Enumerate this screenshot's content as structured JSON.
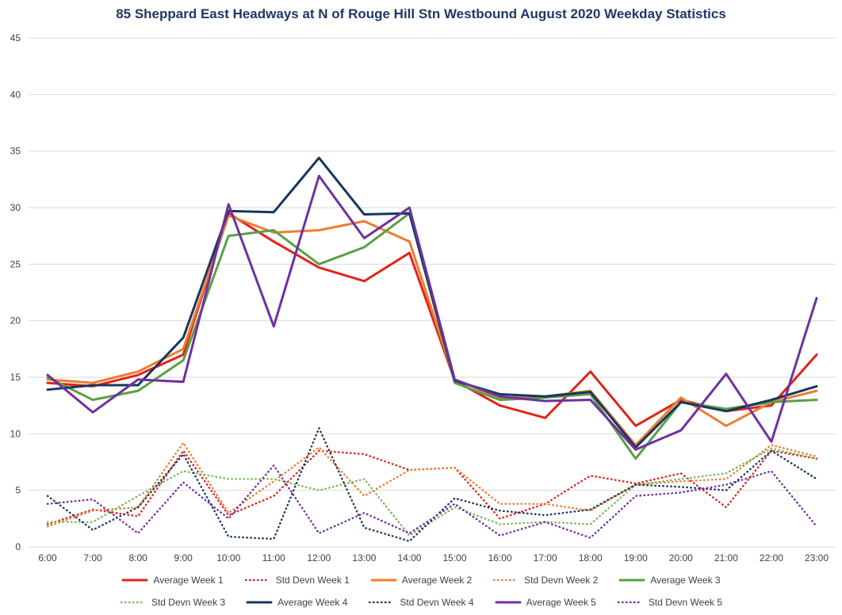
{
  "chart_data": {
    "type": "line",
    "title": "85 Sheppard East Headways at N of Rouge Hill Stn Westbound August 2020 Weekday Statistics",
    "x": [
      "6:00",
      "7:00",
      "8:00",
      "9:00",
      "10:00",
      "11:00",
      "12:00",
      "13:00",
      "14:00",
      "15:00",
      "16:00",
      "17:00",
      "18:00",
      "19:00",
      "20:00",
      "21:00",
      "22:00",
      "23:00"
    ],
    "xlabel": "",
    "ylabel": "",
    "ylim": [
      0,
      45
    ],
    "ytick_step": 5,
    "grid": true,
    "legend_position": "bottom",
    "colors": {
      "gridline": "#D9D9D9",
      "title_text": "#1F3864",
      "axis_text": "#404040",
      "background": "#FFFFFF"
    },
    "series": [
      {
        "name": "Average Week 1",
        "color": "#E2231A",
        "style": "solid",
        "values": [
          14.5,
          14.2,
          15.2,
          17.0,
          29.5,
          27.0,
          24.7,
          23.5,
          26.0,
          14.7,
          12.5,
          11.4,
          15.5,
          10.7,
          13.0,
          12.0,
          12.5,
          17.0
        ]
      },
      {
        "name": "Std Devn Week 1",
        "color": "#E2231A",
        "style": "dotted",
        "values": [
          2.0,
          3.3,
          2.7,
          8.5,
          2.8,
          4.5,
          8.5,
          8.2,
          6.8,
          7.0,
          2.5,
          3.8,
          6.3,
          5.6,
          6.5,
          3.5,
          8.5,
          7.8
        ]
      },
      {
        "name": "Average Week 2",
        "color": "#ED7D31",
        "style": "solid",
        "values": [
          14.8,
          14.5,
          15.5,
          17.5,
          29.3,
          27.8,
          28.0,
          28.8,
          27.0,
          14.8,
          13.2,
          13.3,
          13.8,
          9.0,
          13.2,
          10.7,
          12.8,
          13.8
        ]
      },
      {
        "name": "Std Devn Week 2",
        "color": "#ED7D31",
        "style": "dotted",
        "values": [
          1.8,
          3.2,
          3.5,
          9.2,
          3.0,
          5.8,
          8.8,
          4.5,
          6.8,
          7.0,
          3.8,
          3.8,
          3.2,
          5.5,
          5.8,
          6.0,
          9.0,
          8.0
        ]
      },
      {
        "name": "Average Week 3",
        "color": "#5AA046",
        "style": "solid",
        "values": [
          15.0,
          13.0,
          13.8,
          16.5,
          27.5,
          28.0,
          25.0,
          26.5,
          29.5,
          14.5,
          13.0,
          13.2,
          13.5,
          7.8,
          12.8,
          12.2,
          12.8,
          13.0
        ]
      },
      {
        "name": "Std Devn Week 3",
        "color": "#79B85A",
        "style": "dotted",
        "values": [
          2.2,
          2.2,
          4.5,
          6.7,
          6.0,
          6.0,
          5.0,
          6.0,
          1.0,
          3.5,
          2.0,
          2.2,
          2.0,
          5.5,
          6.0,
          6.5,
          8.7,
          7.8
        ]
      },
      {
        "name": "Average Week 4",
        "color": "#17375E",
        "style": "solid",
        "values": [
          13.9,
          14.3,
          14.3,
          18.5,
          29.7,
          29.6,
          34.4,
          29.4,
          29.5,
          14.7,
          13.5,
          13.3,
          13.7,
          8.8,
          12.8,
          12.0,
          13.0,
          14.2
        ]
      },
      {
        "name": "Std Devn Week 4",
        "color": "#17375E",
        "style": "dotted",
        "values": [
          4.5,
          1.5,
          3.5,
          8.2,
          0.9,
          0.7,
          10.5,
          1.7,
          0.5,
          4.3,
          3.2,
          2.8,
          3.3,
          5.5,
          5.3,
          5.0,
          8.5,
          6.0
        ]
      },
      {
        "name": "Average Week 5",
        "color": "#7030A0",
        "style": "solid",
        "values": [
          15.2,
          11.9,
          14.8,
          14.6,
          30.3,
          19.5,
          32.8,
          27.3,
          30.0,
          14.8,
          13.3,
          12.9,
          13.0,
          8.6,
          10.3,
          15.3,
          9.3,
          22.0
        ]
      },
      {
        "name": "Std Devn Week 5",
        "color": "#7030A0",
        "style": "dotted",
        "values": [
          3.8,
          4.2,
          1.2,
          5.7,
          2.5,
          7.2,
          1.2,
          3.0,
          1.2,
          3.8,
          1.0,
          2.2,
          0.8,
          4.5,
          4.8,
          5.5,
          6.7,
          1.8
        ]
      }
    ]
  }
}
